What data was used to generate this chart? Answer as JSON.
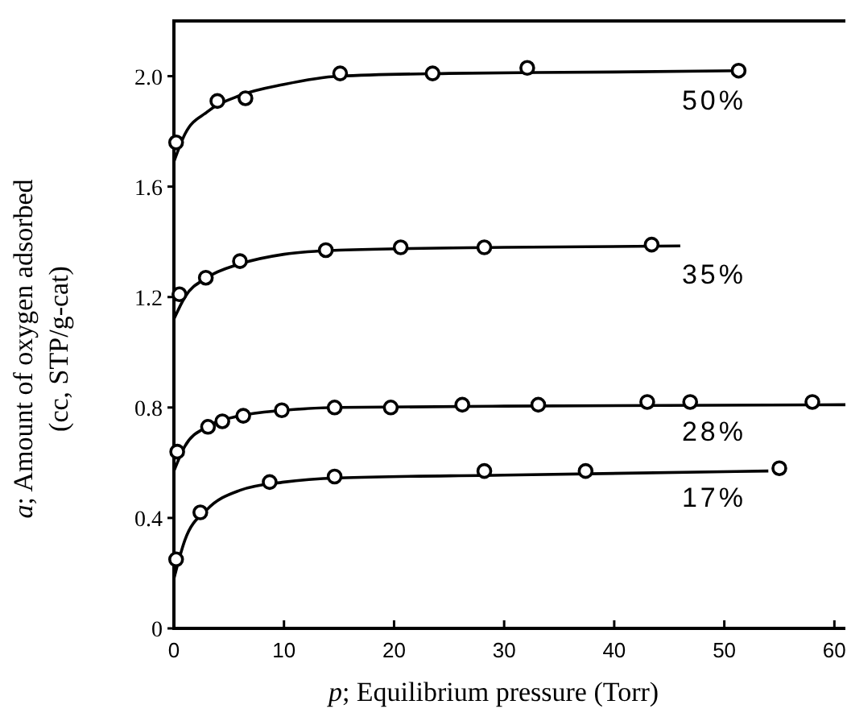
{
  "chart_data": {
    "type": "scatter",
    "xlabel": "p; Equilibrium pressure (Torr)",
    "ylabel": "a; Amount of oxygen adsorbed (cc, STP/g-cat)",
    "xlim": [
      0,
      61
    ],
    "ylim": [
      0,
      2.2
    ],
    "xticks": [
      0,
      10,
      20,
      30,
      40,
      50,
      60
    ],
    "yticks": [
      0,
      0.4,
      0.8,
      1.2,
      1.6,
      {
        "value": 2,
        "label": "2.0"
      }
    ],
    "marker": "circle",
    "series": [
      {
        "name": "50%",
        "color": "#000000",
        "x": [
          0.2,
          3.95,
          6.5,
          15.1,
          23.5,
          32.1,
          51.3
        ],
        "values": [
          1.76,
          1.91,
          1.92,
          2.01,
          2.01,
          2.03,
          2.02
        ]
      },
      {
        "name": "35%",
        "color": "#000000",
        "x": [
          0.5,
          2.9,
          6.0,
          13.8,
          20.6,
          28.2,
          43.4
        ],
        "values": [
          1.21,
          1.27,
          1.33,
          1.37,
          1.38,
          1.38,
          1.39
        ]
      },
      {
        "name": "28%",
        "color": "#000000",
        "x": [
          0.3,
          3.1,
          4.4,
          6.3,
          9.8,
          14.6,
          19.7,
          26.2,
          33.1,
          43.0,
          46.9,
          58.0
        ],
        "values": [
          0.64,
          0.73,
          0.75,
          0.77,
          0.79,
          0.8,
          0.8,
          0.81,
          0.81,
          0.82,
          0.82,
          0.82
        ]
      },
      {
        "name": "17%",
        "color": "#000000",
        "x": [
          0.2,
          2.4,
          8.7,
          14.6,
          28.2,
          37.4,
          55.0
        ],
        "values": [
          0.25,
          0.42,
          0.53,
          0.55,
          0.57,
          0.57,
          0.58
        ]
      },
      {
        "type": "line",
        "color": "#000000",
        "marker": "none",
        "x": [
          0,
          1,
          3,
          6,
          10,
          15,
          25,
          40,
          52
        ],
        "values": [
          1.69,
          1.79,
          1.87,
          1.93,
          1.97,
          2.0,
          2.01,
          2.015,
          2.02
        ]
      },
      {
        "type": "line",
        "color": "#000000",
        "marker": "none",
        "x": [
          0,
          1,
          3,
          6,
          10,
          15,
          30,
          46
        ],
        "values": [
          1.12,
          1.2,
          1.27,
          1.32,
          1.355,
          1.37,
          1.38,
          1.385
        ]
      },
      {
        "type": "line",
        "color": "#000000",
        "marker": "none",
        "x": [
          0,
          1,
          3,
          6,
          10,
          15,
          30,
          61
        ],
        "values": [
          0.57,
          0.66,
          0.73,
          0.77,
          0.79,
          0.8,
          0.805,
          0.81
        ]
      },
      {
        "type": "line",
        "color": "#000000",
        "marker": "none",
        "x": [
          0,
          1,
          3,
          6,
          10,
          15,
          30,
          54
        ],
        "values": [
          0.18,
          0.32,
          0.43,
          0.5,
          0.53,
          0.545,
          0.555,
          0.57
        ]
      }
    ]
  }
}
